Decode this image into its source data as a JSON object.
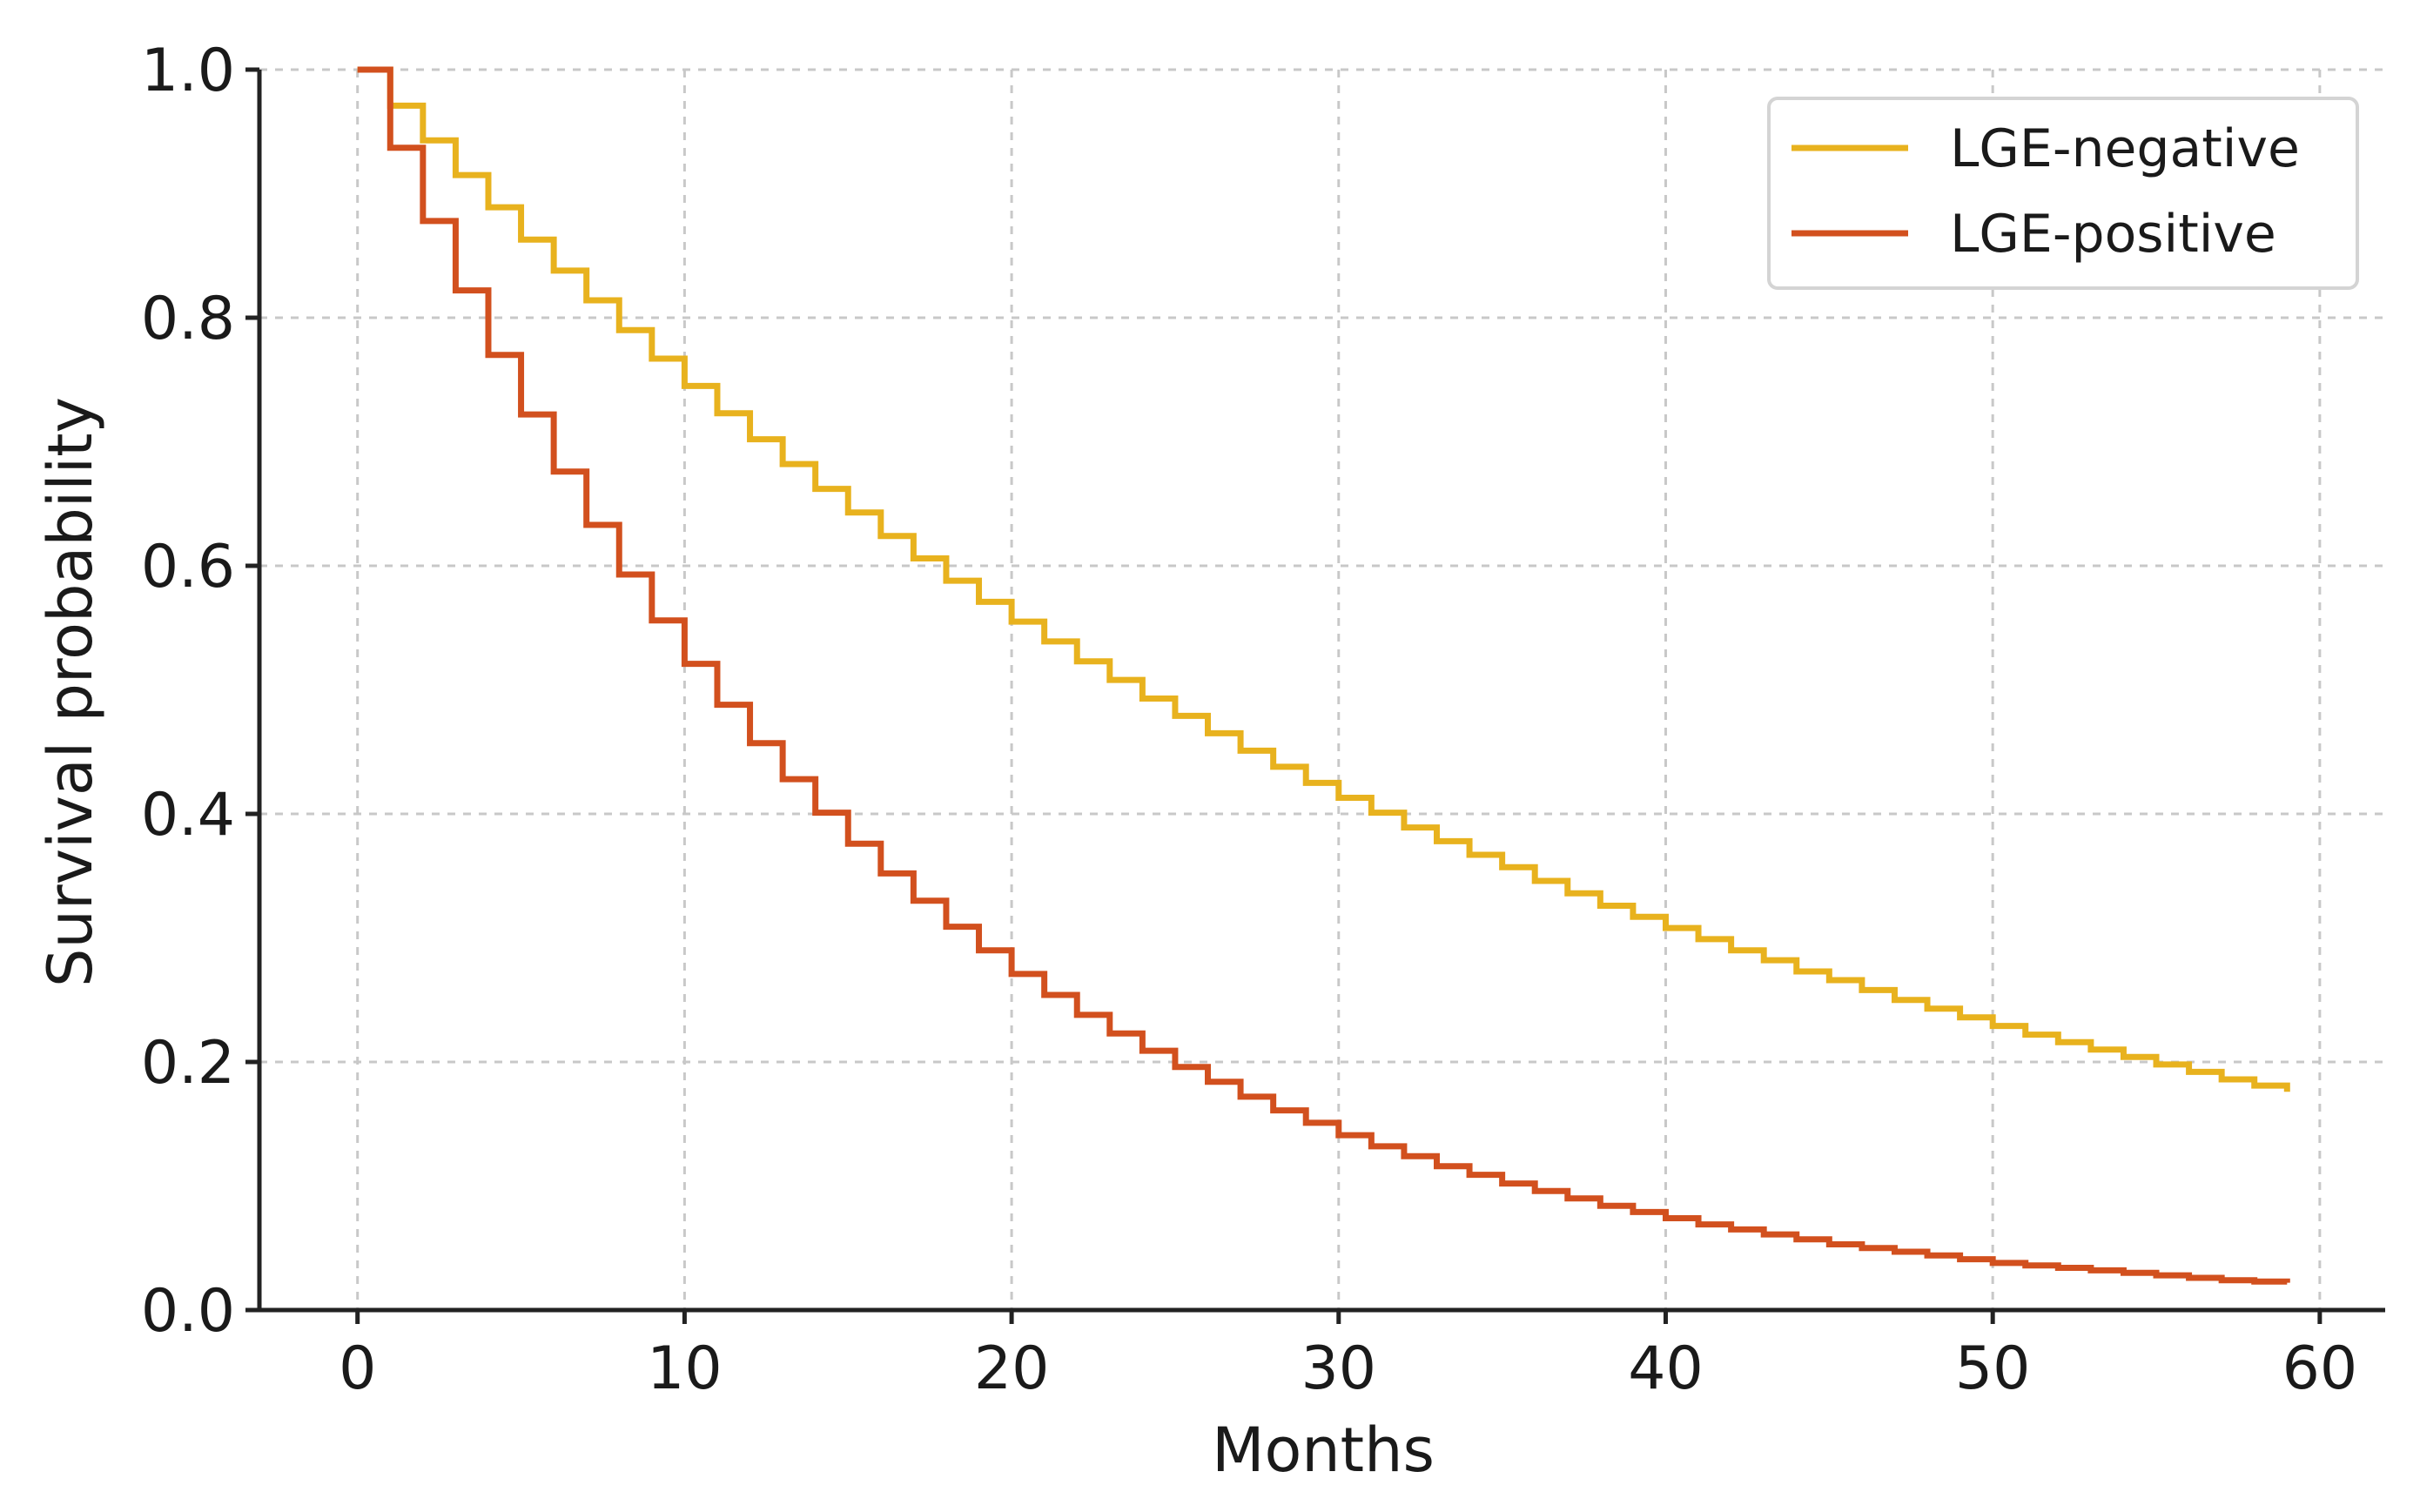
{
  "chart_data": {
    "type": "line",
    "step": "post",
    "xlabel": "Months",
    "ylabel": "Survival probability",
    "xlim": [
      -3,
      62
    ],
    "ylim": [
      0,
      1
    ],
    "xticks": [
      0,
      10,
      20,
      30,
      40,
      50,
      60
    ],
    "yticks": [
      0.0,
      0.2,
      0.4,
      0.6,
      0.8,
      1.0
    ],
    "ytick_labels": [
      "0.0",
      "0.2",
      "0.4",
      "0.6",
      "0.8",
      "1.0"
    ],
    "grid": true,
    "legend_position": "top-right",
    "x": [
      0,
      1,
      2,
      3,
      4,
      5,
      6,
      7,
      8,
      9,
      10,
      11,
      12,
      13,
      14,
      15,
      16,
      17,
      18,
      19,
      20,
      21,
      22,
      23,
      24,
      25,
      26,
      27,
      28,
      29,
      30,
      31,
      32,
      33,
      34,
      35,
      36,
      37,
      38,
      39,
      40,
      41,
      42,
      43,
      44,
      45,
      46,
      47,
      48,
      49,
      50,
      51,
      52,
      53,
      54,
      55,
      56,
      57,
      58,
      59
    ],
    "series": [
      {
        "name": "LGE-negative",
        "color": "#e8b21e",
        "values": [
          1.0,
          0.971,
          0.943,
          0.915,
          0.889,
          0.863,
          0.838,
          0.814,
          0.79,
          0.767,
          0.745,
          0.723,
          0.702,
          0.682,
          0.662,
          0.643,
          0.624,
          0.606,
          0.588,
          0.571,
          0.555,
          0.539,
          0.523,
          0.508,
          0.493,
          0.479,
          0.465,
          0.451,
          0.438,
          0.425,
          0.413,
          0.401,
          0.389,
          0.378,
          0.367,
          0.357,
          0.346,
          0.336,
          0.326,
          0.317,
          0.308,
          0.299,
          0.29,
          0.282,
          0.273,
          0.266,
          0.258,
          0.25,
          0.243,
          0.236,
          0.229,
          0.222,
          0.216,
          0.21,
          0.204,
          0.198,
          0.192,
          0.186,
          0.181,
          0.176
        ]
      },
      {
        "name": "LGE-positive",
        "color": "#d2501e",
        "values": [
          1.0,
          0.937,
          0.878,
          0.822,
          0.77,
          0.722,
          0.676,
          0.633,
          0.593,
          0.556,
          0.521,
          0.488,
          0.457,
          0.428,
          0.401,
          0.376,
          0.352,
          0.33,
          0.309,
          0.29,
          0.271,
          0.254,
          0.238,
          0.223,
          0.209,
          0.196,
          0.184,
          0.172,
          0.161,
          0.151,
          0.141,
          0.132,
          0.124,
          0.116,
          0.109,
          0.102,
          0.096,
          0.09,
          0.084,
          0.079,
          0.074,
          0.069,
          0.065,
          0.061,
          0.057,
          0.053,
          0.05,
          0.047,
          0.044,
          0.041,
          0.038,
          0.036,
          0.034,
          0.032,
          0.03,
          0.028,
          0.026,
          0.024,
          0.023,
          0.022
        ]
      }
    ]
  }
}
